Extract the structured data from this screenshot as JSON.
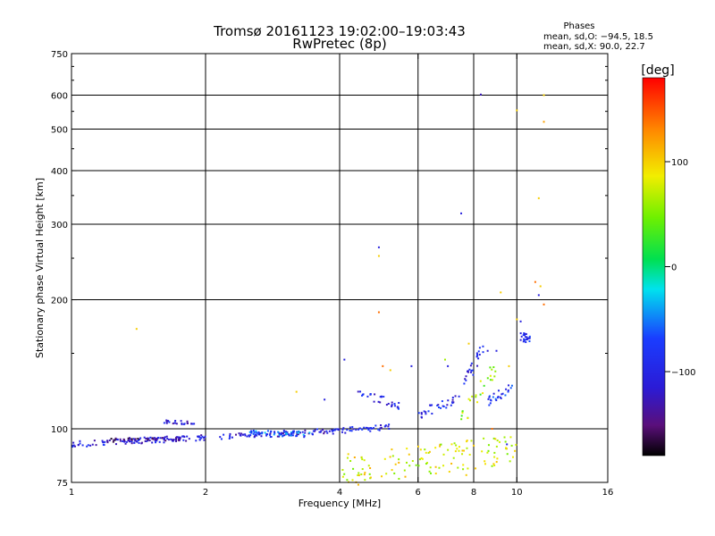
{
  "chart_data": {
    "type": "scatter",
    "title": "Tromsø 20161123 19:02:00–19:03:43",
    "subtitle": "RwPretec (8p)",
    "xlabel": "Frequency [MHz]",
    "ylabel": "Stationary phase Virtual Height [km]",
    "x_scale": "log",
    "y_scale": "log",
    "xlim": [
      1,
      16
    ],
    "ylim": [
      75,
      750
    ],
    "x_ticks": [
      "1",
      "2",
      "4",
      "6",
      "8",
      "10",
      "16"
    ],
    "x_tick_values": [
      1,
      2,
      4,
      6,
      8,
      10,
      16
    ],
    "y_ticks": [
      "75",
      "100",
      "200",
      "300",
      "400",
      "500",
      "600",
      "750"
    ],
    "y_tick_values": [
      75,
      100,
      200,
      300,
      400,
      500,
      600,
      750
    ],
    "grid_x": [
      2,
      4,
      6,
      8,
      10
    ],
    "grid_y": [
      100,
      200,
      300,
      400,
      500,
      600
    ],
    "phase_info": {
      "title": "Phases",
      "line1": "mean, sd,O: −94.5, 18.5",
      "line2": "mean, sd,X:  90.0, 22.7"
    },
    "colorbar": {
      "label": "[deg]",
      "range": [
        -180,
        180
      ],
      "ticks": [
        "100",
        "0",
        "−100"
      ],
      "tick_values": [
        100,
        0,
        -100
      ]
    },
    "traces": [
      {
        "kind": "band",
        "x_from": 1.0,
        "x_to": 4.0,
        "y_from": 92,
        "y_to": 99,
        "phase": -110,
        "jitter": 1.5
      },
      {
        "kind": "band",
        "x_from": 1.2,
        "x_to": 1.8,
        "y_from": 94,
        "y_to": 95,
        "phase": -140,
        "jitter": 1.0
      },
      {
        "kind": "band",
        "x_from": 2.5,
        "x_to": 3.5,
        "y_from": 98,
        "y_to": 97,
        "phase": -60,
        "jitter": 1.5
      },
      {
        "kind": "band",
        "x_from": 4.0,
        "x_to": 5.2,
        "y_from": 99,
        "y_to": 101,
        "phase": -100,
        "jitter": 1.5
      },
      {
        "kind": "band",
        "x_from": 4.4,
        "x_to": 5.5,
        "y_from": 122,
        "y_to": 112,
        "phase": -100,
        "jitter": 3
      },
      {
        "kind": "band",
        "x_from": 6.0,
        "x_to": 7.5,
        "y_from": 108,
        "y_to": 118,
        "phase": -100,
        "jitter": 3
      },
      {
        "kind": "band",
        "x_from": 7.5,
        "x_to": 9.0,
        "y_from": 105,
        "y_to": 140,
        "phase": 60,
        "jitter": 6
      },
      {
        "kind": "band",
        "x_from": 8.5,
        "x_to": 9.8,
        "y_from": 115,
        "y_to": 125,
        "phase": -90,
        "jitter": 3
      },
      {
        "kind": "band",
        "x_from": 7.6,
        "x_to": 8.4,
        "y_from": 125,
        "y_to": 155,
        "phase": -100,
        "jitter": 6
      },
      {
        "kind": "band",
        "x_from": 10.2,
        "x_to": 10.8,
        "y_from": 165,
        "y_to": 160,
        "phase": -100,
        "jitter": 4
      },
      {
        "kind": "band",
        "x_from": 1.6,
        "x_to": 1.9,
        "y_from": 104,
        "y_to": 103,
        "phase": -110,
        "jitter": 1
      },
      {
        "kind": "band",
        "x_from": 4.0,
        "x_to": 10.0,
        "y_from": 80,
        "y_to": 90,
        "phase": 80,
        "jitter": 7
      }
    ],
    "points": [
      {
        "x": 1.4,
        "y": 171,
        "phase": 100
      },
      {
        "x": 3.2,
        "y": 122,
        "phase": 100
      },
      {
        "x": 3.7,
        "y": 117,
        "phase": -110
      },
      {
        "x": 4.1,
        "y": 145,
        "phase": -110
      },
      {
        "x": 4.9,
        "y": 265,
        "phase": -110
      },
      {
        "x": 4.9,
        "y": 253,
        "phase": 100
      },
      {
        "x": 4.9,
        "y": 187,
        "phase": 140
      },
      {
        "x": 5.0,
        "y": 140,
        "phase": 140
      },
      {
        "x": 5.2,
        "y": 137,
        "phase": 100
      },
      {
        "x": 7.5,
        "y": 318,
        "phase": -110
      },
      {
        "x": 8.3,
        "y": 602,
        "phase": -130
      },
      {
        "x": 10.0,
        "y": 553,
        "phase": 100
      },
      {
        "x": 11.5,
        "y": 600,
        "phase": 100
      },
      {
        "x": 11.5,
        "y": 520,
        "phase": 120
      },
      {
        "x": 11.2,
        "y": 345,
        "phase": 100
      },
      {
        "x": 11.0,
        "y": 220,
        "phase": 140
      },
      {
        "x": 11.3,
        "y": 215,
        "phase": 100
      },
      {
        "x": 11.2,
        "y": 205,
        "phase": -110
      },
      {
        "x": 11.5,
        "y": 195,
        "phase": 140
      },
      {
        "x": 9.2,
        "y": 208,
        "phase": 100
      },
      {
        "x": 10.2,
        "y": 178,
        "phase": -110
      },
      {
        "x": 10.0,
        "y": 180,
        "phase": 100
      },
      {
        "x": 6.9,
        "y": 145,
        "phase": 60
      },
      {
        "x": 7.0,
        "y": 140,
        "phase": -110
      },
      {
        "x": 7.8,
        "y": 158,
        "phase": 100
      },
      {
        "x": 8.6,
        "y": 152,
        "phase": -120
      },
      {
        "x": 9.0,
        "y": 152,
        "phase": -110
      },
      {
        "x": 9.6,
        "y": 140,
        "phase": 100
      },
      {
        "x": 5.8,
        "y": 140,
        "phase": -110
      },
      {
        "x": 8.8,
        "y": 100,
        "phase": 140
      },
      {
        "x": 9.5,
        "y": 92,
        "phase": -110
      },
      {
        "x": 5.6,
        "y": 80,
        "phase": 60
      },
      {
        "x": 7.7,
        "y": 78,
        "phase": 100
      },
      {
        "x": 4.7,
        "y": 77,
        "phase": 100
      }
    ]
  }
}
